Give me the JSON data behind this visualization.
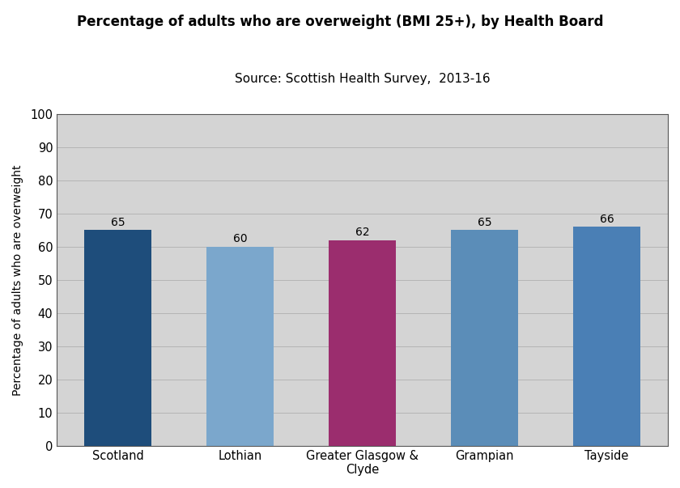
{
  "categories": [
    "Scotland",
    "Lothian",
    "Greater Glasgow &\nClyde",
    "Grampian",
    "Tayside"
  ],
  "values": [
    65,
    60,
    62,
    65,
    66
  ],
  "bar_colors": [
    "#1e4d7b",
    "#7ba7cc",
    "#9b2d6e",
    "#5b8db8",
    "#4a7fb5"
  ],
  "title": "Percentage of adults who are overweight (BMI 25+), by Health Board",
  "subtitle": "Source: Scottish Health Survey,  2013-16",
  "ylabel": "Percentage of adults who are overweight",
  "ylim": [
    0,
    100
  ],
  "yticks": [
    0,
    10,
    20,
    30,
    40,
    50,
    60,
    70,
    80,
    90,
    100
  ],
  "title_fontsize": 12,
  "subtitle_fontsize": 11,
  "ylabel_fontsize": 10,
  "tick_fontsize": 10.5,
  "label_fontsize": 10,
  "plot_bg_color": "#d4d4d4",
  "outer_bg_color": "#ffffff",
  "grid_color": "#b0b0b0",
  "spine_color": "#555555"
}
